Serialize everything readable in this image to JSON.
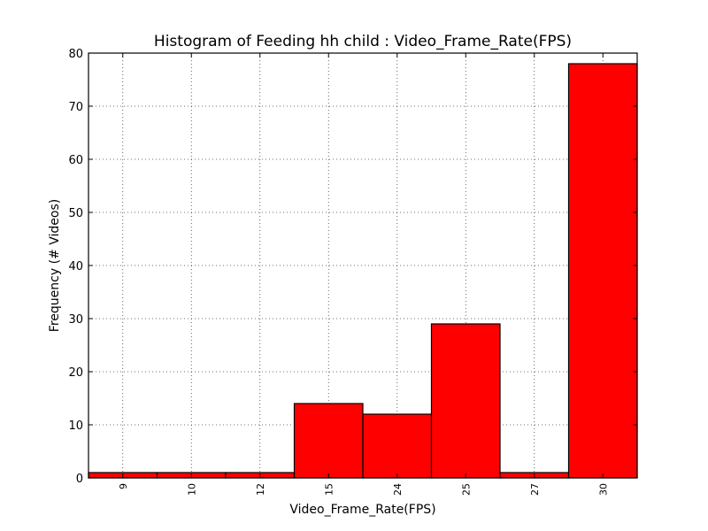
{
  "chart_data": {
    "type": "bar",
    "title": "Histogram of Feeding hh child : Video_Frame_Rate(FPS)",
    "xlabel": "Video_Frame_Rate(FPS)",
    "ylabel": "Frequency (# Videos)",
    "categories": [
      "9",
      "10",
      "12",
      "15",
      "24",
      "25",
      "27",
      "30"
    ],
    "values": [
      1,
      1,
      1,
      14,
      12,
      29,
      1,
      78
    ],
    "ylim": [
      0,
      80
    ],
    "yticks": [
      0,
      10,
      20,
      30,
      40,
      50,
      60,
      70,
      80
    ],
    "grid": true,
    "bar_color": "#ff0000",
    "edge_color": "#000000"
  }
}
